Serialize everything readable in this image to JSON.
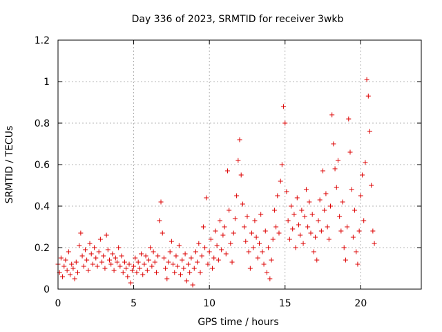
{
  "chart_data": {
    "type": "scatter",
    "title": "Day 336 of 2023, SRMTID for receiver 3wkb",
    "xlabel": "GPS time / hours",
    "ylabel": "SRMTID / TECUs",
    "xlim": [
      0,
      24
    ],
    "ylim": [
      0,
      1.2
    ],
    "x_ticks": [
      0,
      5,
      10,
      15,
      20
    ],
    "x_tick_labels": [
      "0",
      "5",
      "10",
      "15",
      "20"
    ],
    "y_ticks": [
      0,
      0.2,
      0.4,
      0.6,
      0.8,
      1.0,
      1.2
    ],
    "y_tick_labels": [
      "0",
      "0.2",
      "0.4",
      "0.6",
      "0.8",
      "1",
      "1.2"
    ],
    "grid": true,
    "marker": "plus",
    "color": "#dd0000",
    "series": [
      {
        "name": "SRMTID",
        "points": [
          [
            0.0,
            0.12
          ],
          [
            0.1,
            0.08
          ],
          [
            0.2,
            0.15
          ],
          [
            0.3,
            0.06
          ],
          [
            0.4,
            0.11
          ],
          [
            0.5,
            0.14
          ],
          [
            0.6,
            0.09
          ],
          [
            0.7,
            0.18
          ],
          [
            0.8,
            0.07
          ],
          [
            0.9,
            0.12
          ],
          [
            1.0,
            0.1
          ],
          [
            1.1,
            0.05
          ],
          [
            1.2,
            0.13
          ],
          [
            1.3,
            0.08
          ],
          [
            1.4,
            0.21
          ],
          [
            1.5,
            0.27
          ],
          [
            1.6,
            0.16
          ],
          [
            1.7,
            0.11
          ],
          [
            1.8,
            0.19
          ],
          [
            1.9,
            0.14
          ],
          [
            2.0,
            0.09
          ],
          [
            2.1,
            0.22
          ],
          [
            2.2,
            0.17
          ],
          [
            2.3,
            0.12
          ],
          [
            2.4,
            0.2
          ],
          [
            2.5,
            0.15
          ],
          [
            2.6,
            0.11
          ],
          [
            2.7,
            0.18
          ],
          [
            2.8,
            0.24
          ],
          [
            2.9,
            0.13
          ],
          [
            3.0,
            0.16
          ],
          [
            3.1,
            0.1
          ],
          [
            3.2,
            0.26
          ],
          [
            3.3,
            0.19
          ],
          [
            3.4,
            0.14
          ],
          [
            3.5,
            0.12
          ],
          [
            3.6,
            0.17
          ],
          [
            3.7,
            0.09
          ],
          [
            3.8,
            0.15
          ],
          [
            3.9,
            0.13
          ],
          [
            4.0,
            0.2
          ],
          [
            4.1,
            0.11
          ],
          [
            4.2,
            0.16
          ],
          [
            4.3,
            0.08
          ],
          [
            4.4,
            0.13
          ],
          [
            4.5,
            0.1
          ],
          [
            4.6,
            0.06
          ],
          [
            4.7,
            0.12
          ],
          [
            4.8,
            0.03
          ],
          [
            4.9,
            0.09
          ],
          [
            5.0,
            0.11
          ],
          [
            5.1,
            0.15
          ],
          [
            5.2,
            0.08
          ],
          [
            5.3,
            0.13
          ],
          [
            5.4,
            0.1
          ],
          [
            5.5,
            0.17
          ],
          [
            5.6,
            0.07
          ],
          [
            5.7,
            0.12
          ],
          [
            5.8,
            0.16
          ],
          [
            5.9,
            0.09
          ],
          [
            6.0,
            0.14
          ],
          [
            6.1,
            0.2
          ],
          [
            6.2,
            0.11
          ],
          [
            6.3,
            0.18
          ],
          [
            6.4,
            0.13
          ],
          [
            6.5,
            0.08
          ],
          [
            6.6,
            0.16
          ],
          [
            6.7,
            0.33
          ],
          [
            6.8,
            0.42
          ],
          [
            6.9,
            0.27
          ],
          [
            7.0,
            0.15
          ],
          [
            7.1,
            0.1
          ],
          [
            7.2,
            0.05
          ],
          [
            7.3,
            0.13
          ],
          [
            7.4,
            0.18
          ],
          [
            7.5,
            0.23
          ],
          [
            7.6,
            0.12
          ],
          [
            7.7,
            0.08
          ],
          [
            7.8,
            0.16
          ],
          [
            7.9,
            0.11
          ],
          [
            8.0,
            0.21
          ],
          [
            8.1,
            0.07
          ],
          [
            8.2,
            0.14
          ],
          [
            8.3,
            0.1
          ],
          [
            8.4,
            0.17
          ],
          [
            8.5,
            0.04
          ],
          [
            8.6,
            0.12
          ],
          [
            8.7,
            0.08
          ],
          [
            8.8,
            0.15
          ],
          [
            8.9,
            0.02
          ],
          [
            9.0,
            0.1
          ],
          [
            9.1,
            0.18
          ],
          [
            9.2,
            0.13
          ],
          [
            9.3,
            0.22
          ],
          [
            9.4,
            0.08
          ],
          [
            9.5,
            0.16
          ],
          [
            9.6,
            0.3
          ],
          [
            9.7,
            0.2
          ],
          [
            9.8,
            0.44
          ],
          [
            9.9,
            0.12
          ],
          [
            10.0,
            0.18
          ],
          [
            10.1,
            0.24
          ],
          [
            10.2,
            0.1
          ],
          [
            10.3,
            0.15
          ],
          [
            10.4,
            0.28
          ],
          [
            10.5,
            0.21
          ],
          [
            10.6,
            0.14
          ],
          [
            10.7,
            0.33
          ],
          [
            10.8,
            0.19
          ],
          [
            10.9,
            0.26
          ],
          [
            11.0,
            0.3
          ],
          [
            11.1,
            0.17
          ],
          [
            11.2,
            0.57
          ],
          [
            11.3,
            0.38
          ],
          [
            11.4,
            0.22
          ],
          [
            11.5,
            0.13
          ],
          [
            11.6,
            0.27
          ],
          [
            11.7,
            0.34
          ],
          [
            11.8,
            0.45
          ],
          [
            11.9,
            0.62
          ],
          [
            12.0,
            0.72
          ],
          [
            12.1,
            0.55
          ],
          [
            12.2,
            0.41
          ],
          [
            12.3,
            0.3
          ],
          [
            12.4,
            0.23
          ],
          [
            12.5,
            0.35
          ],
          [
            12.6,
            0.18
          ],
          [
            12.7,
            0.1
          ],
          [
            12.8,
            0.27
          ],
          [
            12.9,
            0.2
          ],
          [
            13.0,
            0.33
          ],
          [
            13.1,
            0.25
          ],
          [
            13.2,
            0.15
          ],
          [
            13.3,
            0.22
          ],
          [
            13.4,
            0.36
          ],
          [
            13.5,
            0.18
          ],
          [
            13.6,
            0.12
          ],
          [
            13.7,
            0.28
          ],
          [
            13.8,
            0.08
          ],
          [
            13.9,
            0.2
          ],
          [
            14.0,
            0.05
          ],
          [
            14.1,
            0.14
          ],
          [
            14.2,
            0.24
          ],
          [
            14.3,
            0.38
          ],
          [
            14.4,
            0.3
          ],
          [
            14.5,
            0.45
          ],
          [
            14.6,
            0.27
          ],
          [
            14.7,
            0.52
          ],
          [
            14.8,
            0.6
          ],
          [
            14.9,
            0.88
          ],
          [
            15.0,
            0.8
          ],
          [
            15.1,
            0.47
          ],
          [
            15.2,
            0.33
          ],
          [
            15.3,
            0.24
          ],
          [
            15.4,
            0.4
          ],
          [
            15.5,
            0.29
          ],
          [
            15.6,
            0.36
          ],
          [
            15.7,
            0.2
          ],
          [
            15.8,
            0.44
          ],
          [
            15.9,
            0.31
          ],
          [
            16.0,
            0.26
          ],
          [
            16.1,
            0.38
          ],
          [
            16.2,
            0.22
          ],
          [
            16.3,
            0.35
          ],
          [
            16.4,
            0.48
          ],
          [
            16.5,
            0.3
          ],
          [
            16.6,
            0.42
          ],
          [
            16.7,
            0.27
          ],
          [
            16.8,
            0.36
          ],
          [
            16.9,
            0.18
          ],
          [
            17.0,
            0.25
          ],
          [
            17.1,
            0.14
          ],
          [
            17.2,
            0.33
          ],
          [
            17.3,
            0.43
          ],
          [
            17.4,
            0.28
          ],
          [
            17.5,
            0.57
          ],
          [
            17.6,
            0.38
          ],
          [
            17.7,
            0.46
          ],
          [
            17.8,
            0.3
          ],
          [
            17.9,
            0.24
          ],
          [
            18.0,
            0.4
          ],
          [
            18.1,
            0.84
          ],
          [
            18.2,
            0.7
          ],
          [
            18.3,
            0.58
          ],
          [
            18.4,
            0.49
          ],
          [
            18.5,
            0.62
          ],
          [
            18.6,
            0.35
          ],
          [
            18.7,
            0.28
          ],
          [
            18.8,
            0.42
          ],
          [
            18.9,
            0.2
          ],
          [
            19.0,
            0.14
          ],
          [
            19.1,
            0.3
          ],
          [
            19.2,
            0.82
          ],
          [
            19.3,
            0.66
          ],
          [
            19.4,
            0.48
          ],
          [
            19.5,
            0.25
          ],
          [
            19.6,
            0.38
          ],
          [
            19.7,
            0.18
          ],
          [
            19.8,
            0.12
          ],
          [
            19.9,
            0.28
          ],
          [
            20.0,
            0.45
          ],
          [
            20.1,
            0.55
          ],
          [
            20.2,
            0.33
          ],
          [
            20.3,
            0.61
          ],
          [
            20.4,
            1.01
          ],
          [
            20.5,
            0.93
          ],
          [
            20.6,
            0.76
          ],
          [
            20.7,
            0.5
          ],
          [
            20.8,
            0.28
          ],
          [
            20.9,
            0.22
          ]
        ]
      }
    ]
  }
}
